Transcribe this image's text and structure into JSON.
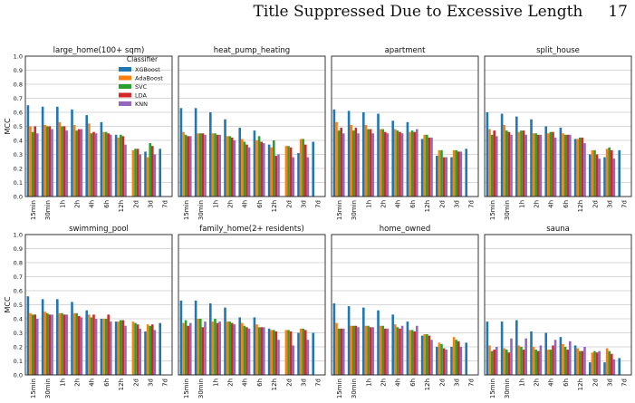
{
  "page": {
    "header_title": "Title Suppressed Due to Excessive Length",
    "page_number": "17"
  },
  "chart_data": {
    "type": "bar",
    "ylabel": "MCC",
    "ylim": [
      0,
      1.0
    ],
    "yticks": [
      "0.0",
      "0.1",
      "0.2",
      "0.3",
      "0.4",
      "0.5",
      "0.6",
      "0.7",
      "0.8",
      "0.9",
      "1.0"
    ],
    "grid": "horizontal",
    "categories": [
      "15min",
      "30min",
      "1h",
      "2h",
      "4h",
      "6h",
      "12h",
      "2d",
      "3d",
      "7d"
    ],
    "legend": {
      "title": "Classifier",
      "placement": "top-right of first panel",
      "entries": [
        "XGBoost",
        "AdaBoost",
        "SVC",
        "LDA",
        "KNN"
      ]
    },
    "colors": {
      "XGBoost": "#1f77b4",
      "AdaBoost": "#ff7f0e",
      "SVC": "#2ca02c",
      "LDA": "#d62728",
      "KNN": "#9467bd"
    },
    "panels": [
      {
        "title": "large_home(100+ sqm)",
        "series": [
          {
            "name": "XGBoost",
            "values": [
              0.65,
              0.64,
              0.64,
              0.62,
              0.58,
              0.53,
              0.44,
              null,
              0.32,
              0.34
            ]
          },
          {
            "name": "AdaBoost",
            "values": [
              0.5,
              0.51,
              0.53,
              0.51,
              0.52,
              0.46,
              0.42,
              0.33,
              0.28,
              null
            ]
          },
          {
            "name": "SVC",
            "values": [
              0.46,
              0.5,
              0.5,
              0.47,
              0.45,
              0.46,
              0.44,
              0.34,
              0.38,
              null
            ]
          },
          {
            "name": "LDA",
            "values": [
              0.5,
              0.5,
              0.5,
              0.48,
              0.46,
              0.45,
              0.43,
              0.34,
              0.36,
              null
            ]
          },
          {
            "name": "KNN",
            "values": [
              0.45,
              0.48,
              0.47,
              0.48,
              0.45,
              0.44,
              0.37,
              0.3,
              0.3,
              null
            ]
          }
        ]
      },
      {
        "title": "heat_pump_heating",
        "series": [
          {
            "name": "XGBoost",
            "values": [
              0.63,
              0.63,
              0.6,
              0.55,
              0.49,
              0.47,
              0.37,
              null,
              0.31,
              0.39
            ]
          },
          {
            "name": "AdaBoost",
            "values": [
              0.46,
              0.45,
              0.45,
              0.43,
              0.41,
              0.4,
              0.35,
              0.36,
              0.41,
              null
            ]
          },
          {
            "name": "SVC",
            "values": [
              0.44,
              0.45,
              0.45,
              0.43,
              0.39,
              0.43,
              0.4,
              0.36,
              0.41,
              null
            ]
          },
          {
            "name": "LDA",
            "values": [
              0.43,
              0.45,
              0.44,
              0.42,
              0.37,
              0.39,
              0.29,
              0.35,
              0.37,
              null
            ]
          },
          {
            "name": "KNN",
            "values": [
              0.43,
              0.44,
              0.44,
              0.4,
              0.35,
              0.38,
              0.3,
              0.28,
              0.28,
              null
            ]
          }
        ]
      },
      {
        "title": "apartment",
        "series": [
          {
            "name": "XGBoost",
            "values": [
              0.62,
              0.61,
              0.6,
              0.59,
              0.54,
              0.53,
              0.41,
              0.29,
              0.28,
              0.34
            ]
          },
          {
            "name": "AdaBoost",
            "values": [
              0.53,
              0.51,
              0.51,
              0.48,
              0.48,
              0.46,
              0.44,
              0.33,
              0.33,
              null
            ]
          },
          {
            "name": "SVC",
            "values": [
              0.47,
              0.47,
              0.48,
              0.48,
              0.47,
              0.47,
              0.44,
              0.33,
              0.33,
              null
            ]
          },
          {
            "name": "LDA",
            "values": [
              0.49,
              0.49,
              0.48,
              0.46,
              0.46,
              0.46,
              0.42,
              0.28,
              0.32,
              null
            ]
          },
          {
            "name": "KNN",
            "values": [
              0.45,
              0.45,
              0.45,
              0.45,
              0.45,
              0.48,
              0.42,
              0.28,
              0.32,
              null
            ]
          }
        ]
      },
      {
        "title": "split_house",
        "series": [
          {
            "name": "XGBoost",
            "values": [
              0.6,
              0.59,
              0.57,
              0.55,
              0.5,
              0.49,
              0.41,
              0.3,
              0.28,
              0.33
            ]
          },
          {
            "name": "AdaBoost",
            "values": [
              0.48,
              0.51,
              0.46,
              0.45,
              0.45,
              0.45,
              0.41,
              0.33,
              0.34,
              null
            ]
          },
          {
            "name": "SVC",
            "values": [
              0.44,
              0.47,
              0.47,
              0.45,
              0.46,
              0.44,
              0.42,
              0.33,
              0.35,
              null
            ]
          },
          {
            "name": "LDA",
            "values": [
              0.47,
              0.46,
              0.47,
              0.44,
              0.46,
              0.44,
              0.42,
              0.3,
              0.33,
              null
            ]
          },
          {
            "name": "KNN",
            "values": [
              0.43,
              0.44,
              0.44,
              0.44,
              0.42,
              0.44,
              0.38,
              0.27,
              0.27,
              null
            ]
          }
        ]
      },
      {
        "title": "swimming_pool",
        "series": [
          {
            "name": "XGBoost",
            "values": [
              0.56,
              0.54,
              0.54,
              0.52,
              0.46,
              0.4,
              0.38,
              null,
              0.31,
              0.37
            ]
          },
          {
            "name": "AdaBoost",
            "values": [
              0.44,
              0.45,
              0.44,
              0.44,
              0.43,
              0.4,
              0.38,
              0.38,
              0.36,
              null
            ]
          },
          {
            "name": "SVC",
            "values": [
              0.43,
              0.44,
              0.44,
              0.44,
              0.41,
              0.4,
              0.39,
              0.37,
              0.35,
              null
            ]
          },
          {
            "name": "LDA",
            "values": [
              0.43,
              0.43,
              0.43,
              0.42,
              0.43,
              0.43,
              0.39,
              0.36,
              0.36,
              null
            ]
          },
          {
            "name": "KNN",
            "values": [
              0.4,
              0.43,
              0.43,
              0.41,
              0.4,
              0.38,
              0.35,
              0.33,
              0.32,
              null
            ]
          }
        ]
      },
      {
        "title": "family_home(2+ residents)",
        "series": [
          {
            "name": "XGBoost",
            "values": [
              0.53,
              0.53,
              0.51,
              0.48,
              0.41,
              0.41,
              0.33,
              null,
              0.3,
              0.3
            ]
          },
          {
            "name": "AdaBoost",
            "values": [
              0.37,
              0.4,
              0.38,
              0.38,
              0.37,
              0.36,
              0.32,
              0.32,
              0.33,
              null
            ]
          },
          {
            "name": "SVC",
            "values": [
              0.39,
              0.4,
              0.4,
              0.38,
              0.35,
              0.34,
              0.32,
              0.32,
              0.33,
              null
            ]
          },
          {
            "name": "LDA",
            "values": [
              0.35,
              0.34,
              0.37,
              0.37,
              0.34,
              0.34,
              0.31,
              0.31,
              0.32,
              null
            ]
          },
          {
            "name": "KNN",
            "values": [
              0.37,
              0.38,
              0.38,
              0.36,
              0.33,
              0.34,
              0.25,
              0.21,
              0.25,
              null
            ]
          }
        ]
      },
      {
        "title": "home_owned",
        "series": [
          {
            "name": "XGBoost",
            "values": [
              0.51,
              0.49,
              0.48,
              0.46,
              0.43,
              0.38,
              0.28,
              0.2,
              0.2,
              0.23
            ]
          },
          {
            "name": "AdaBoost",
            "values": [
              0.37,
              0.35,
              0.35,
              0.35,
              0.36,
              0.32,
              0.29,
              0.23,
              0.27,
              null
            ]
          },
          {
            "name": "SVC",
            "values": [
              0.33,
              0.35,
              0.35,
              0.35,
              0.34,
              0.32,
              0.29,
              0.22,
              0.25,
              null
            ]
          },
          {
            "name": "LDA",
            "values": [
              0.33,
              0.35,
              0.34,
              0.33,
              0.33,
              0.31,
              0.28,
              0.19,
              0.24,
              null
            ]
          },
          {
            "name": "KNN",
            "values": [
              0.33,
              0.34,
              0.34,
              0.33,
              0.35,
              0.35,
              0.25,
              0.18,
              0.2,
              null
            ]
          }
        ]
      },
      {
        "title": "sauna",
        "series": [
          {
            "name": "XGBoost",
            "values": [
              0.38,
              0.38,
              0.39,
              0.31,
              0.3,
              0.27,
              0.21,
              0.09,
              0.09,
              0.12
            ]
          },
          {
            "name": "AdaBoost",
            "values": [
              0.21,
              0.19,
              0.21,
              0.2,
              0.18,
              0.22,
              0.19,
              0.16,
              0.19,
              null
            ]
          },
          {
            "name": "SVC",
            "values": [
              0.17,
              0.18,
              0.2,
              0.18,
              0.18,
              0.2,
              0.17,
              0.17,
              0.17,
              null
            ]
          },
          {
            "name": "LDA",
            "values": [
              0.18,
              0.16,
              0.18,
              0.17,
              0.21,
              0.18,
              0.17,
              0.16,
              0.15,
              null
            ]
          },
          {
            "name": "KNN",
            "values": [
              0.2,
              0.26,
              0.26,
              0.21,
              0.25,
              0.24,
              0.2,
              0.17,
              0.11,
              null
            ]
          }
        ]
      }
    ]
  }
}
